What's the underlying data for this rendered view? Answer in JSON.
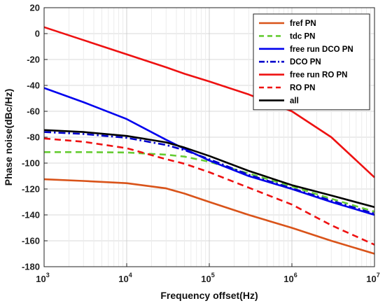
{
  "chart_data": {
    "type": "line",
    "title": "",
    "xlabel": "Frequency offset(Hz)",
    "ylabel": "Phase noise(dBc/Hz)",
    "xscale": "log",
    "xlim": [
      1000,
      10000000
    ],
    "ylim": [
      -180,
      20
    ],
    "grid": true,
    "legend_position": "top-right",
    "x_ticks": [
      {
        "base": "10",
        "exp": "3",
        "value": 1000
      },
      {
        "base": "10",
        "exp": "4",
        "value": 10000
      },
      {
        "base": "10",
        "exp": "5",
        "value": 100000
      },
      {
        "base": "10",
        "exp": "6",
        "value": 1000000
      },
      {
        "base": "10",
        "exp": "7",
        "value": 10000000
      }
    ],
    "y_ticks": [
      "20",
      "0",
      "-20",
      "-40",
      "-60",
      "-80",
      "-100",
      "-120",
      "-140",
      "-160",
      "-180"
    ],
    "x": [
      1000,
      3000,
      10000,
      30000,
      50000,
      100000,
      300000,
      1000000,
      3000000,
      10000000
    ],
    "series": [
      {
        "name": "fref PN",
        "color": "#d95319",
        "dash": "solid",
        "values": [
          -112.5,
          -113.8,
          -115.5,
          -119.5,
          -123.5,
          -130,
          -140,
          -150,
          -160,
          -170
        ]
      },
      {
        "name": "tdc PN",
        "color": "#66cc33",
        "dash": "dashed",
        "values": [
          -91.5,
          -91.5,
          -91.8,
          -93.5,
          -95,
          -99,
          -108,
          -118,
          -127.5,
          -137.5
        ]
      },
      {
        "name": "free run DCO PN",
        "color": "#0000ee",
        "dash": "solid",
        "values": [
          -42,
          -53,
          -66,
          -82,
          -89,
          -98,
          -110,
          -120,
          -130,
          -140
        ]
      },
      {
        "name": "DCO PN",
        "color": "#0000cc",
        "dash": "dashdot",
        "values": [
          -76,
          -77.5,
          -80.5,
          -86,
          -90,
          -97,
          -109,
          -119.5,
          -129,
          -139
        ]
      },
      {
        "name": "free run RO PN",
        "color": "#ee1111",
        "dash": "solid",
        "values": [
          5,
          -5,
          -16,
          -26,
          -31,
          -37,
          -47,
          -60,
          -80,
          -111
        ]
      },
      {
        "name": "RO PN",
        "color": "#ee1111",
        "dash": "dashed",
        "values": [
          -81,
          -83.5,
          -88.5,
          -97,
          -100.5,
          -107,
          -119,
          -132,
          -148,
          -163
        ]
      },
      {
        "name": "all",
        "color": "#000000",
        "dash": "solid",
        "values": [
          -74.5,
          -76,
          -79,
          -84,
          -88,
          -94.5,
          -106,
          -117,
          -125,
          -134
        ]
      }
    ]
  }
}
